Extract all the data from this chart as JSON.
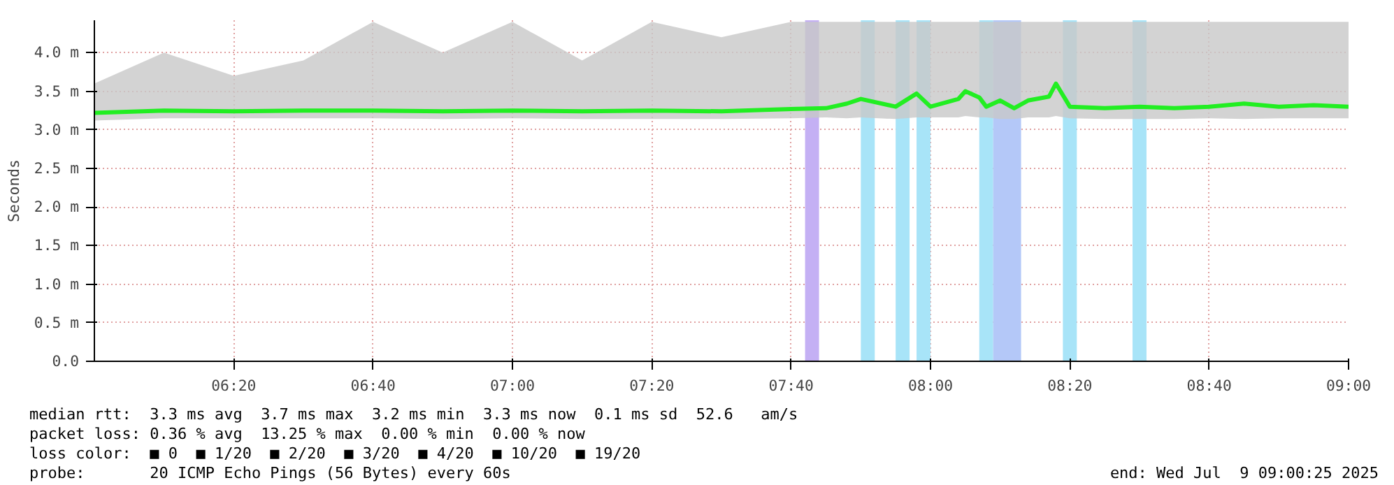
{
  "chart_data": {
    "type": "line",
    "ylabel": "Seconds",
    "xlim": [
      "2025-07-09T06:00",
      "2025-07-09T09:00"
    ],
    "xticks": [
      {
        "value": "2025-07-09T06:20",
        "label": "06:20"
      },
      {
        "value": "2025-07-09T06:40",
        "label": "06:40"
      },
      {
        "value": "2025-07-09T07:00",
        "label": "07:00"
      },
      {
        "value": "2025-07-09T07:20",
        "label": "07:20"
      },
      {
        "value": "2025-07-09T07:40",
        "label": "07:40"
      },
      {
        "value": "2025-07-09T08:00",
        "label": "08:00"
      },
      {
        "value": "2025-07-09T08:20",
        "label": "08:20"
      },
      {
        "value": "2025-07-09T08:40",
        "label": "08:40"
      },
      {
        "value": "2025-07-09T09:00",
        "label": "09:00"
      }
    ],
    "ylim": [
      0,
      4.42
    ],
    "yticks": [
      {
        "value": 0,
        "label": "0.0"
      },
      {
        "value": 0.5,
        "label": "0.5 m"
      },
      {
        "value": 1.0,
        "label": "1.0 m"
      },
      {
        "value": 1.5,
        "label": "1.5 m"
      },
      {
        "value": 2.0,
        "label": "2.0 m"
      },
      {
        "value": 2.5,
        "label": "2.5 m"
      },
      {
        "value": 3.0,
        "label": "3.0 m"
      },
      {
        "value": 3.5,
        "label": "3.5 m"
      },
      {
        "value": 4.0,
        "label": "4.0 m"
      }
    ],
    "grid": true,
    "x": [
      "2025-07-09T06:00",
      "2025-07-09T06:10",
      "2025-07-09T06:20",
      "2025-07-09T06:30",
      "2025-07-09T06:40",
      "2025-07-09T06:50",
      "2025-07-09T07:00",
      "2025-07-09T07:10",
      "2025-07-09T07:20",
      "2025-07-09T07:30",
      "2025-07-09T07:40",
      "2025-07-09T07:45",
      "2025-07-09T07:48",
      "2025-07-09T07:50",
      "2025-07-09T07:55",
      "2025-07-09T07:58",
      "2025-07-09T08:00",
      "2025-07-09T08:04",
      "2025-07-09T08:05",
      "2025-07-09T08:07",
      "2025-07-09T08:08",
      "2025-07-09T08:10",
      "2025-07-09T08:12",
      "2025-07-09T08:14",
      "2025-07-09T08:17",
      "2025-07-09T08:18",
      "2025-07-09T08:20",
      "2025-07-09T08:25",
      "2025-07-09T08:30",
      "2025-07-09T08:35",
      "2025-07-09T08:40",
      "2025-07-09T08:45",
      "2025-07-09T08:50",
      "2025-07-09T08:55",
      "2025-07-09T09:00"
    ],
    "series": [
      {
        "color": "#22ee22",
        "values": [
          3.22,
          3.25,
          3.24,
          3.25,
          3.25,
          3.24,
          3.25,
          3.24,
          3.25,
          3.24,
          3.27,
          3.28,
          3.34,
          3.4,
          3.3,
          3.47,
          3.3,
          3.4,
          3.5,
          3.42,
          3.3,
          3.38,
          3.28,
          3.38,
          3.43,
          3.6,
          3.3,
          3.28,
          3.3,
          3.28,
          3.3,
          3.34,
          3.3,
          3.32,
          3.3
        ],
        "lower": [
          3.12,
          3.15,
          3.15,
          3.15,
          3.15,
          3.14,
          3.15,
          3.14,
          3.14,
          3.14,
          3.15,
          3.16,
          3.15,
          3.16,
          3.14,
          3.16,
          3.16,
          3.16,
          3.18,
          3.16,
          3.16,
          3.14,
          3.14,
          3.16,
          3.16,
          3.18,
          3.15,
          3.14,
          3.14,
          3.14,
          3.15,
          3.14,
          3.15,
          3.15,
          3.15
        ],
        "upper": [
          3.6,
          4.0,
          3.7,
          3.9,
          4.4,
          4.0,
          4.4,
          3.9,
          4.4,
          4.2,
          4.4,
          4.4,
          4.4,
          4.4,
          4.4,
          4.4,
          4.4,
          4.4,
          4.4,
          4.4,
          4.4,
          4.4,
          4.4,
          4.4,
          4.4,
          4.4,
          4.4,
          4.4,
          4.4,
          4.4,
          4.4,
          4.4,
          4.4,
          4.4,
          4.4
        ]
      }
    ],
    "bands": [
      {
        "axis": "x",
        "from": "2025-07-09T07:42",
        "to": "2025-07-09T07:44",
        "color": "#c4b0f4"
      },
      {
        "axis": "x",
        "from": "2025-07-09T07:50",
        "to": "2025-07-09T07:52",
        "color": "#a8e4f8"
      },
      {
        "axis": "x",
        "from": "2025-07-09T07:55",
        "to": "2025-07-09T07:57",
        "color": "#a8e4f8"
      },
      {
        "axis": "x",
        "from": "2025-07-09T07:58",
        "to": "2025-07-09T08:00",
        "color": "#a8e4f8"
      },
      {
        "axis": "x",
        "from": "2025-07-09T08:07",
        "to": "2025-07-09T08:09",
        "color": "#a8e4f8"
      },
      {
        "axis": "x",
        "from": "2025-07-09T08:09",
        "to": "2025-07-09T08:13",
        "color": "#b4c8f8"
      },
      {
        "axis": "x",
        "from": "2025-07-09T08:19",
        "to": "2025-07-09T08:21",
        "color": "#a8e4f8"
      },
      {
        "axis": "x",
        "from": "2025-07-09T08:29",
        "to": "2025-07-09T08:31",
        "color": "#a8e4f8"
      }
    ],
    "annotations": [
      "median rtt:  3.3 ms avg  3.7 ms max  3.2 ms min  3.3 ms now  0.1 ms sd  52.6   am/s",
      "packet loss: 0.36 % avg  13.25 % max  0.00 % min  0.00 % now",
      "loss color:  ■ 0  ■ 1/20  ■ 2/20  ■ 3/20  ■ 4/20  ■ 10/20  ■ 19/20",
      "probe:       20 ICMP Echo Pings (56 Bytes) every 60s",
      "end: Wed Jul  9 09:00:25 2025"
    ]
  }
}
